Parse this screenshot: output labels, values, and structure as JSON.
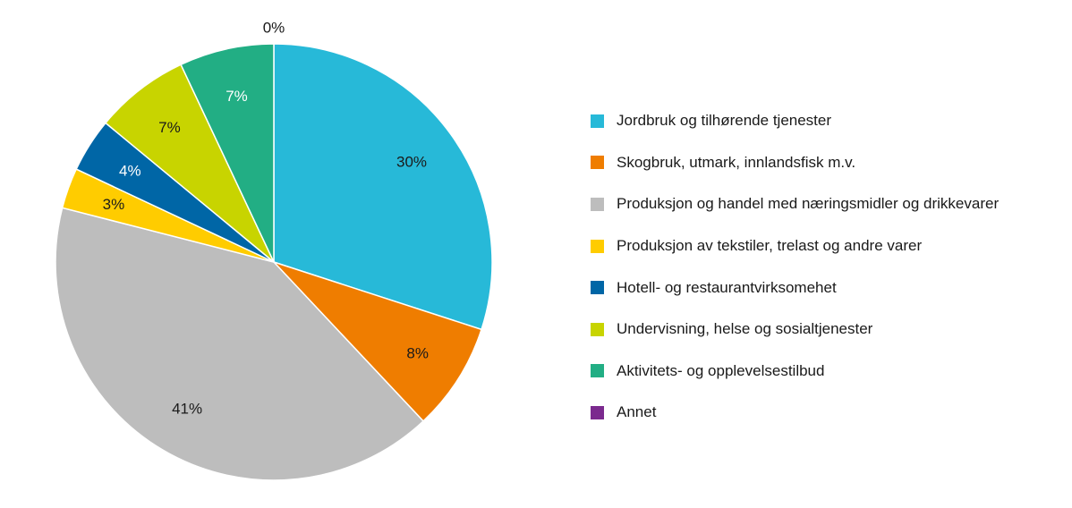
{
  "chart_data": {
    "type": "pie",
    "title": "",
    "categories": [
      "Jordbruk og tilhørende tjenester",
      "Skogbruk, utmark, innlandsfisk m.v.",
      "Produksjon og handel med næringsmidler og drikkevarer",
      "Produksjon av tekstiler, trelast og andre varer",
      "Hotell- og restaurantvirksomehet",
      "Undervisning, helse og sosialtjenester",
      "Aktivitets- og opplevelsestilbud",
      "Annet"
    ],
    "values": [
      30,
      8,
      41,
      3,
      4,
      7,
      7,
      0
    ],
    "value_labels": [
      "30%",
      "8%",
      "41%",
      "3%",
      "4%",
      "7%",
      "7%",
      "0%"
    ],
    "colors": [
      "#27B9D8",
      "#EF7D00",
      "#BDBDBD",
      "#FFCC00",
      "#0066A6",
      "#C8D400",
      "#22AE84",
      "#7B2A8E"
    ],
    "label_colors": [
      "#1a1a1a",
      "#1a1a1a",
      "#1a1a1a",
      "#1a1a1a",
      "#ffffff",
      "#1a1a1a",
      "#ffffff",
      "#1a1a1a"
    ],
    "legend_position": "right"
  }
}
